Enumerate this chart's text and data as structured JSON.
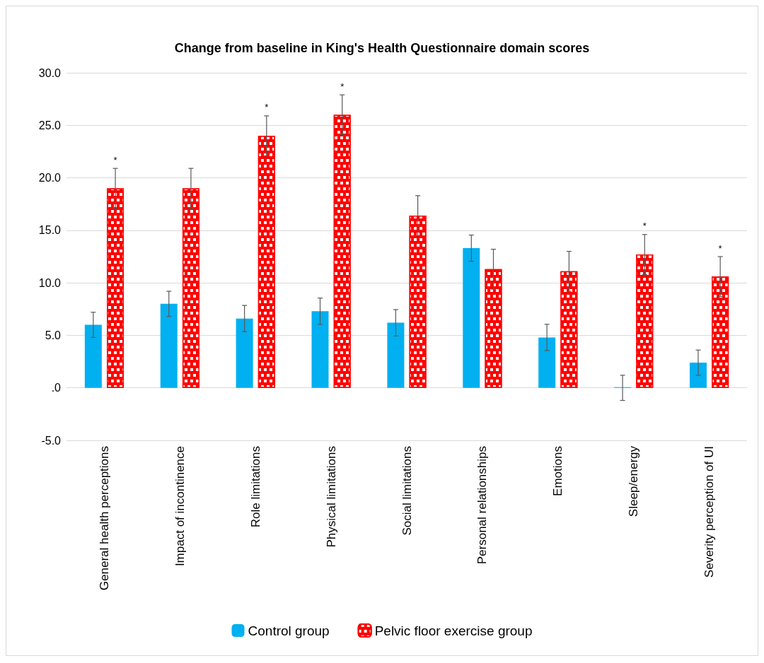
{
  "chart_data": {
    "type": "bar",
    "title": "Change from baseline in King's Health Questionnaire domain scores",
    "categories": [
      "General health perceptions",
      "Impact of incontinence",
      "Role limitations",
      "Physical limitations",
      "Social limitations",
      "Personal relationships",
      "Emotions",
      "Sleep/energy",
      "Severity perception of UI"
    ],
    "series": [
      {
        "name": "Control group",
        "color": "#00b0f0",
        "values": [
          6.0,
          8.0,
          6.6,
          7.3,
          6.2,
          13.3,
          4.8,
          0,
          2.4
        ],
        "errors": [
          1.2,
          1.2,
          1.25,
          1.25,
          1.25,
          1.25,
          1.25,
          1.2,
          1.2
        ]
      },
      {
        "name": "Pelvic floor exercise group",
        "color": "#ff0000",
        "values": [
          19.0,
          19.0,
          24.0,
          26.0,
          16.4,
          11.3,
          11.1,
          12.7,
          10.6
        ],
        "value_labels": [
          "*",
          null,
          "*",
          "*",
          null,
          null,
          null,
          "*",
          "*"
        ],
        "errors": [
          1.9,
          1.9,
          1.9,
          1.9,
          1.9,
          1.9,
          1.9,
          1.9,
          1.9
        ]
      }
    ],
    "ylim": [
      -5,
      30
    ],
    "yticks": [
      {
        "value": -5,
        "label": "-5.0"
      },
      {
        "value": 0,
        "label": ".0"
      },
      {
        "value": 5,
        "label": "5.0"
      },
      {
        "value": 10,
        "label": "10.0"
      },
      {
        "value": 15,
        "label": "15.0"
      },
      {
        "value": 20,
        "label": "20.0"
      },
      {
        "value": 25,
        "label": "25.0"
      },
      {
        "value": 30,
        "label": "30.0"
      }
    ],
    "grid": "y",
    "legend": "bottom"
  }
}
